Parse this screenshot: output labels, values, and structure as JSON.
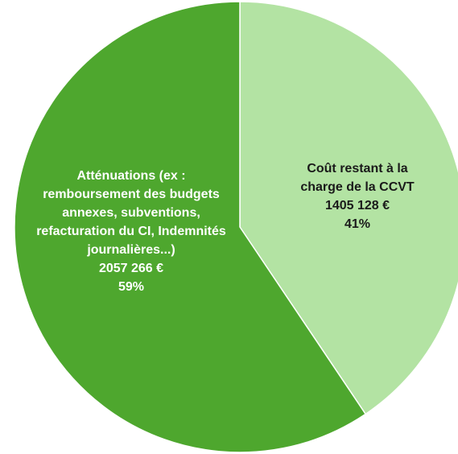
{
  "chart_data": {
    "type": "pie",
    "title": "",
    "legend": "none",
    "slices": [
      {
        "label_lines": [
          "Coût restant à la",
          "charge de la CCVT"
        ],
        "value": 1405128,
        "value_text": "1405 128 €",
        "percent_text": "41%",
        "color": "#b3e3a3"
      },
      {
        "label_lines": [
          "Atténuations (ex :",
          "remboursement des budgets",
          "annexes, subventions,",
          "refacturation du CI, Indemnités",
          "journalières...)"
        ],
        "value": 2057266,
        "value_text": "2057 266 €",
        "percent_text": "59%",
        "color": "#4ea72e"
      }
    ]
  }
}
